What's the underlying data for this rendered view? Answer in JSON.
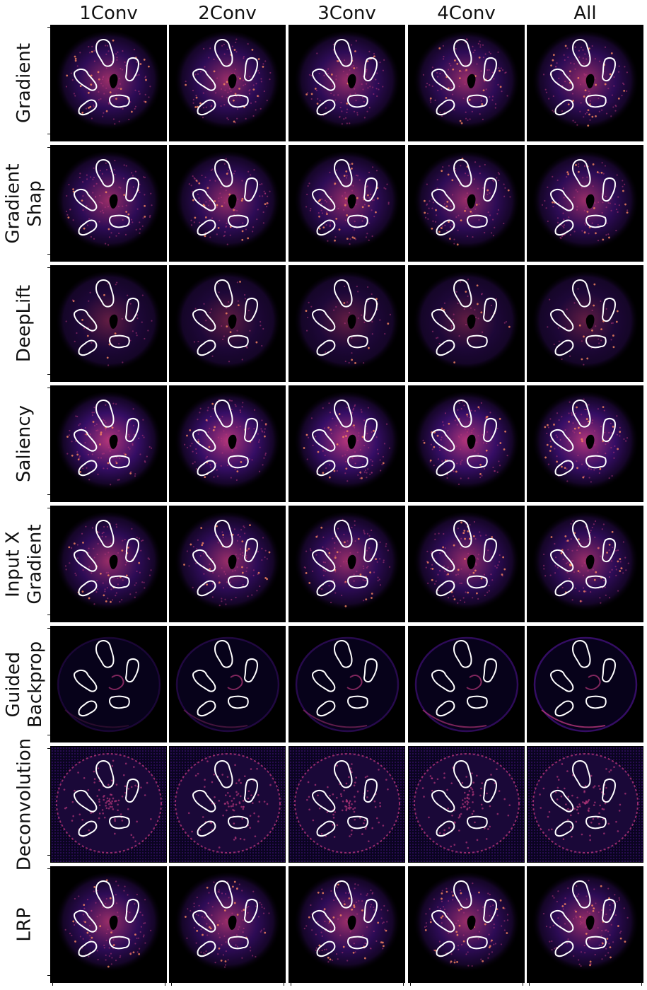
{
  "columns": [
    "1Conv",
    "2Conv",
    "3Conv",
    "4Conv",
    "All"
  ],
  "rows": [
    {
      "lines": [
        "Gradient"
      ],
      "style": "blob"
    },
    {
      "lines": [
        "Gradient",
        "Shap"
      ],
      "style": "blob"
    },
    {
      "lines": [
        "DeepLift"
      ],
      "style": "dim"
    },
    {
      "lines": [
        "Saliency"
      ],
      "style": "bright"
    },
    {
      "lines": [
        "Input X",
        "Gradient"
      ],
      "style": "blob"
    },
    {
      "lines": [
        "Guided",
        "Backprop"
      ],
      "style": "edge"
    },
    {
      "lines": [
        "Deconvolution"
      ],
      "style": "grid"
    },
    {
      "lines": [
        "LRP"
      ],
      "style": "blob"
    }
  ],
  "colors": {
    "background": "#000000",
    "low": "#3b0f70",
    "mid": "#b5367a",
    "high": "#fb8861",
    "contour": "#ffffff"
  }
}
